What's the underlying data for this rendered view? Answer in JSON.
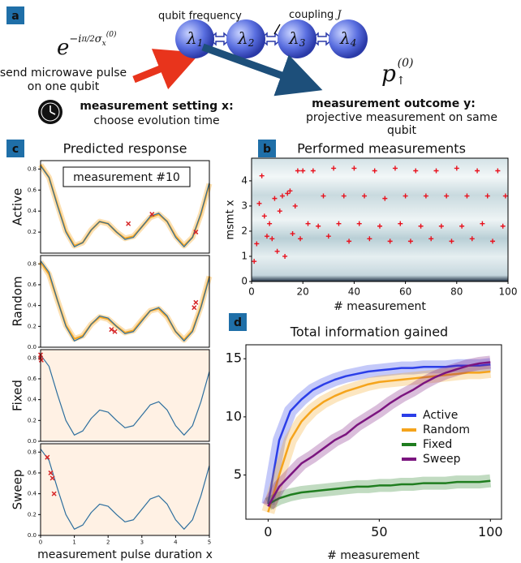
{
  "diagram": {
    "panel_labels": [
      "a",
      "b",
      "c",
      "d"
    ],
    "formula": {
      "base": "e",
      "exponent": "−i",
      "fraction": "π/2",
      "operator": "σ",
      "sub": "x",
      "sup": "(0)"
    },
    "qubit_frequency": "qubit frequency",
    "coupling": "coupling",
    "coupling_symbol": "J",
    "nodes": [
      {
        "symbol": "λ",
        "index": "1"
      },
      {
        "symbol": "λ",
        "index": "2"
      },
      {
        "symbol": "λ",
        "index": "3"
      },
      {
        "symbol": "λ",
        "index": "4"
      }
    ],
    "pulse_text": [
      "send microwave pulse",
      "on one qubit"
    ],
    "outcome_symbol": {
      "base": "p",
      "sub": "↑",
      "sup": "(0)"
    },
    "setting_title": "measurement setting x:",
    "setting_text": "choose evolution time",
    "outcome_title": "measurement outcome y:",
    "outcome_text": [
      "projective measurement on same",
      "qubit"
    ]
  },
  "chart_data": [
    {
      "type": "line",
      "title": "Predicted response",
      "y_label": "Active",
      "annotation": "measurement #10",
      "x": [
        0,
        0.25,
        0.5,
        0.75,
        1,
        1.25,
        1.5,
        1.75,
        2,
        2.25,
        2.5,
        2.75,
        3,
        3.25,
        3.5,
        3.75,
        4,
        4.25,
        4.5,
        4.75,
        5
      ],
      "series": [
        {
          "color": "#f5a623",
          "values": [
            0.84,
            0.72,
            0.46,
            0.21,
            0.07,
            0.1,
            0.22,
            0.3,
            0.28,
            0.2,
            0.14,
            0.16,
            0.25,
            0.34,
            0.37,
            0.3,
            0.16,
            0.07,
            0.15,
            0.37,
            0.66
          ]
        },
        {
          "color": "#2e6f9e",
          "values": [
            0.83,
            0.72,
            0.45,
            0.2,
            0.06,
            0.1,
            0.22,
            0.3,
            0.28,
            0.2,
            0.13,
            0.15,
            0.25,
            0.35,
            0.38,
            0.3,
            0.15,
            0.06,
            0.15,
            0.38,
            0.67
          ]
        }
      ],
      "measurements": {
        "color": "#d62728",
        "x": [
          2.6,
          3.3,
          4.6
        ],
        "y": [
          0.28,
          0.37,
          0.2
        ]
      },
      "xlim": [
        0,
        5
      ],
      "ylim": [
        0,
        0.88
      ],
      "yticks": [
        0.2,
        0.4,
        0.6,
        0.8
      ]
    },
    {
      "type": "line",
      "y_label": "Random",
      "x": [
        0,
        0.25,
        0.5,
        0.75,
        1,
        1.25,
        1.5,
        1.75,
        2,
        2.25,
        2.5,
        2.75,
        3,
        3.25,
        3.5,
        3.75,
        4,
        4.25,
        4.5,
        4.75,
        5
      ],
      "series": [
        {
          "color": "#f5a623",
          "values": [
            0.82,
            0.7,
            0.45,
            0.21,
            0.08,
            0.11,
            0.22,
            0.29,
            0.27,
            0.2,
            0.14,
            0.16,
            0.26,
            0.35,
            0.37,
            0.29,
            0.15,
            0.07,
            0.16,
            0.39,
            0.68
          ]
        },
        {
          "color": "#2e6f9e",
          "values": [
            0.83,
            0.72,
            0.45,
            0.2,
            0.06,
            0.1,
            0.22,
            0.3,
            0.28,
            0.2,
            0.13,
            0.15,
            0.25,
            0.35,
            0.38,
            0.3,
            0.15,
            0.06,
            0.15,
            0.38,
            0.67
          ]
        }
      ],
      "measurements": {
        "color": "#d62728",
        "x": [
          2.1,
          2.2,
          4.55,
          4.6
        ],
        "y": [
          0.17,
          0.15,
          0.38,
          0.43
        ]
      },
      "xlim": [
        0,
        5
      ],
      "ylim": [
        0,
        0.88
      ],
      "yticks": [
        {
          "value": 0,
          "label": "0.0"
        },
        0.2,
        0.4,
        0.6,
        0.8
      ]
    },
    {
      "type": "line",
      "y_label": "Fixed",
      "x": [
        0,
        0.25,
        0.5,
        0.75,
        1,
        1.25,
        1.5,
        1.75,
        2,
        2.25,
        2.5,
        2.75,
        3,
        3.25,
        3.5,
        3.75,
        4,
        4.25,
        4.5,
        4.75,
        5
      ],
      "series": [
        {
          "color": "#2e6f9e",
          "values": [
            0.83,
            0.72,
            0.45,
            0.2,
            0.06,
            0.1,
            0.22,
            0.3,
            0.28,
            0.2,
            0.13,
            0.15,
            0.25,
            0.35,
            0.38,
            0.3,
            0.15,
            0.06,
            0.15,
            0.38,
            0.67
          ]
        }
      ],
      "measurements": {
        "color": "#d62728",
        "x": [
          0,
          0,
          0.02
        ],
        "y": [
          0.8,
          0.83,
          0.78
        ]
      },
      "xlim": [
        0,
        5
      ],
      "ylim": [
        0,
        0.88
      ],
      "yticks": [
        {
          "value": 0,
          "label": "0.0"
        },
        0.2,
        0.4,
        0.6,
        0.8
      ]
    },
    {
      "type": "line",
      "y_label": "Sweep",
      "x_label": "measurement pulse duration x",
      "x": [
        0,
        0.25,
        0.5,
        0.75,
        1,
        1.25,
        1.5,
        1.75,
        2,
        2.25,
        2.5,
        2.75,
        3,
        3.25,
        3.5,
        3.75,
        4,
        4.25,
        4.5,
        4.75,
        5
      ],
      "series": [
        {
          "color": "#2e6f9e",
          "values": [
            0.83,
            0.72,
            0.45,
            0.2,
            0.06,
            0.1,
            0.22,
            0.3,
            0.28,
            0.2,
            0.13,
            0.15,
            0.25,
            0.35,
            0.38,
            0.3,
            0.15,
            0.06,
            0.15,
            0.38,
            0.67
          ]
        }
      ],
      "measurements": {
        "color": "#d62728",
        "x": [
          0.2,
          0.3,
          0.35,
          0.4
        ],
        "y": [
          0.75,
          0.6,
          0.55,
          0.4
        ]
      },
      "xlim": [
        0,
        5
      ],
      "ylim": [
        0,
        0.88
      ],
      "yticks": [
        {
          "value": 0,
          "label": "0.0"
        },
        0.2,
        0.4,
        0.6,
        0.8
      ],
      "xticks": [
        0,
        1,
        2,
        3,
        4,
        5
      ]
    },
    {
      "type": "scatter",
      "title": "Performed measurements",
      "x_label": "# measurement",
      "y_label": "msmt x",
      "color": "#e8121e",
      "x": [
        1,
        2,
        3,
        4,
        5,
        6,
        7,
        8,
        9,
        10,
        11,
        12,
        13,
        14,
        15,
        16,
        17,
        18,
        19,
        20,
        22,
        24,
        26,
        28,
        30,
        32,
        34,
        36,
        38,
        40,
        42,
        44,
        46,
        48,
        50,
        52,
        54,
        56,
        58,
        60,
        62,
        64,
        66,
        68,
        70,
        72,
        74,
        76,
        78,
        80,
        82,
        84,
        86,
        88,
        90,
        92,
        94,
        96,
        98,
        99
      ],
      "y": [
        0.8,
        1.5,
        3.1,
        4.2,
        2.6,
        1.8,
        2.3,
        1.7,
        3.3,
        1.2,
        2.8,
        3.4,
        1.0,
        3.5,
        3.6,
        1.9,
        3.0,
        4.4,
        1.7,
        4.4,
        2.3,
        4.4,
        2.2,
        3.4,
        1.8,
        4.5,
        2.3,
        3.4,
        1.6,
        4.5,
        2.3,
        3.4,
        1.7,
        4.4,
        2.2,
        3.3,
        1.6,
        4.5,
        2.3,
        3.4,
        1.6,
        4.4,
        2.2,
        3.4,
        1.7,
        4.4,
        2.2,
        3.4,
        1.6,
        4.5,
        2.2,
        3.4,
        1.7,
        4.4,
        2.3,
        3.4,
        1.6,
        4.4,
        2.2,
        3.4
      ],
      "xlim": [
        0,
        100
      ],
      "ylim": [
        0,
        4.9
      ],
      "xticks": [
        0,
        20,
        40,
        60,
        80,
        100
      ],
      "yticks": [
        0,
        1,
        2,
        3,
        4
      ]
    },
    {
      "type": "line",
      "title": "Total information gained",
      "x_label": "# measurement",
      "legend": "right",
      "x": [
        0,
        5,
        10,
        15,
        20,
        25,
        30,
        35,
        40,
        45,
        50,
        55,
        60,
        65,
        70,
        75,
        80,
        85,
        90,
        95,
        100
      ],
      "series": [
        {
          "name": "Active",
          "color": "#2b3ee8",
          "values": [
            2.5,
            8,
            10.5,
            11.5,
            12.3,
            12.8,
            13.2,
            13.5,
            13.7,
            13.9,
            14,
            14.1,
            14.2,
            14.2,
            14.3,
            14.3,
            14.3,
            14.4,
            14.4,
            14.4,
            14.5
          ]
        },
        {
          "name": "Random",
          "color": "#f5a41c",
          "values": [
            1.8,
            5,
            8,
            9.6,
            10.6,
            11.3,
            11.8,
            12.2,
            12.5,
            12.8,
            13,
            13.1,
            13.2,
            13.3,
            13.4,
            13.5,
            13.6,
            13.7,
            13.8,
            13.8,
            13.9
          ]
        },
        {
          "name": "Fixed",
          "color": "#1f7d1f",
          "values": [
            2.5,
            3,
            3.3,
            3.5,
            3.6,
            3.7,
            3.8,
            3.9,
            4,
            4,
            4.1,
            4.1,
            4.2,
            4.2,
            4.3,
            4.3,
            4.3,
            4.4,
            4.4,
            4.4,
            4.5
          ]
        },
        {
          "name": "Sweep",
          "color": "#7b157f",
          "values": [
            2.3,
            4,
            5,
            6,
            6.6,
            7.3,
            8,
            8.5,
            9.3,
            9.9,
            10.5,
            11.2,
            11.8,
            12.3,
            12.9,
            13.4,
            13.8,
            14.1,
            14.4,
            14.6,
            14.7
          ]
        }
      ],
      "xlim": [
        -10,
        105
      ],
      "ylim": [
        1.2,
        16.2
      ],
      "xticks": [
        0,
        50,
        100
      ],
      "yticks": [
        5,
        10,
        15
      ]
    }
  ]
}
